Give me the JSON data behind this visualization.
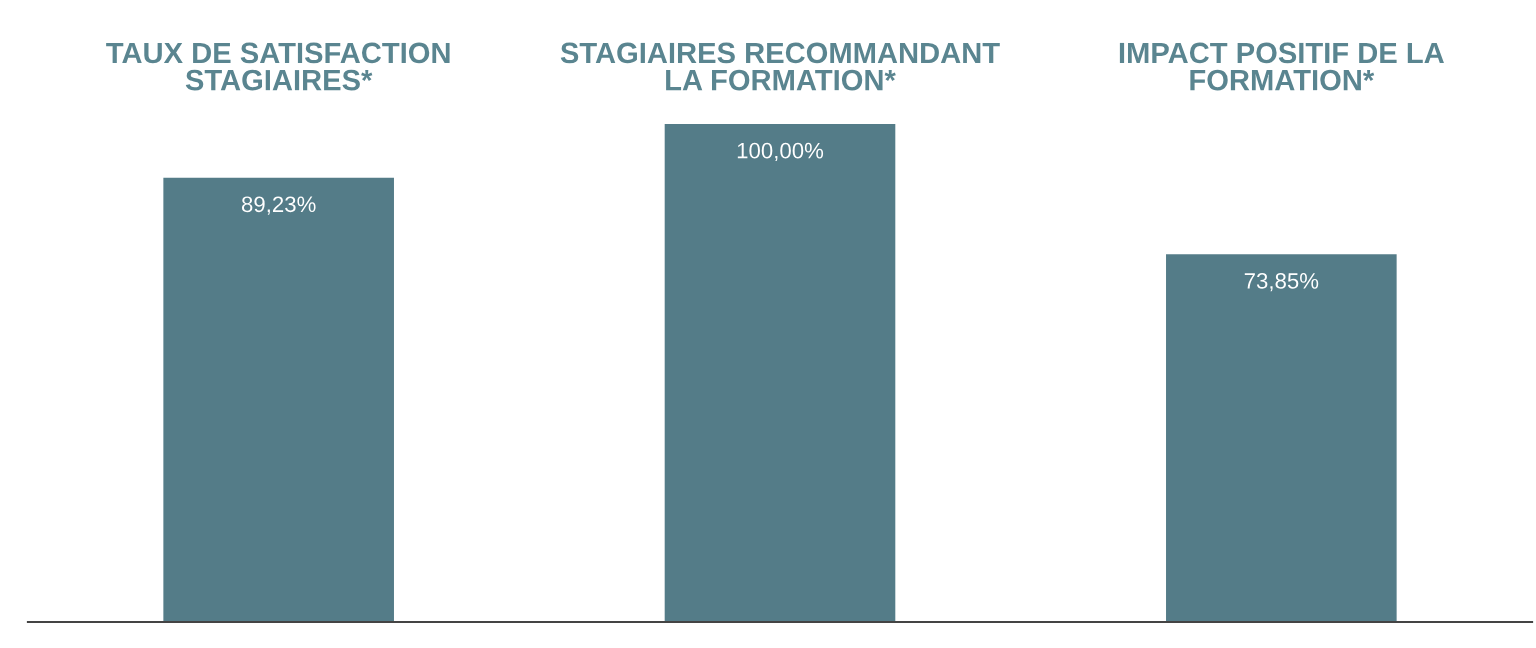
{
  "chart_data": {
    "type": "bar",
    "categories": [
      "TAUX DE SATISFACTION\nSTAGIAIRES*",
      "STAGIAIRES RECOMMANDANT\nLA FORMATION*",
      "IMPACT POSITIF DE LA\nFORMATION*"
    ],
    "values": [
      89.23,
      100.0,
      73.85
    ],
    "value_labels": [
      "89,23%",
      "100,00%",
      "73,85%"
    ],
    "color": "#547c88",
    "tick_labels": "x",
    "grid": false,
    "legend": false
  }
}
